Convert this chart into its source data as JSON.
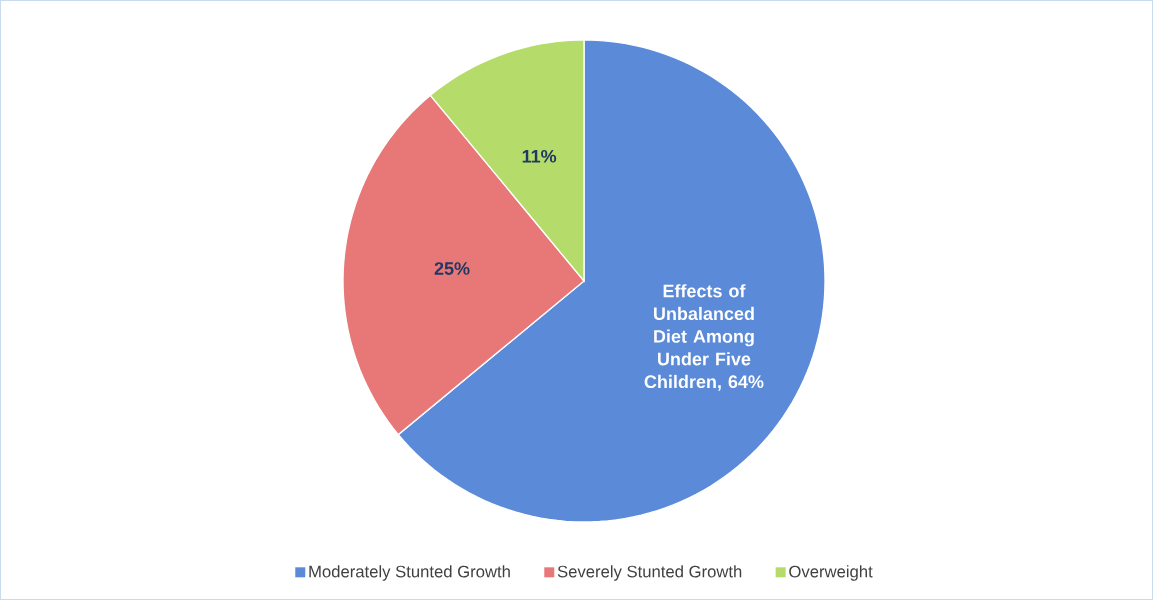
{
  "chart_data": {
    "type": "pie",
    "categories": [
      "Moderately Stunted Growth",
      "Severely Stunted Growth",
      "Overweight"
    ],
    "values": [
      64,
      25,
      11
    ],
    "colors": [
      "#5a8ad8",
      "#e87878",
      "#b5dc6a"
    ],
    "value_labels": [
      "Effects of Unbalanced Diet Among Under Five Children, 64%",
      "25%",
      "11%"
    ],
    "legend": "bottom"
  }
}
